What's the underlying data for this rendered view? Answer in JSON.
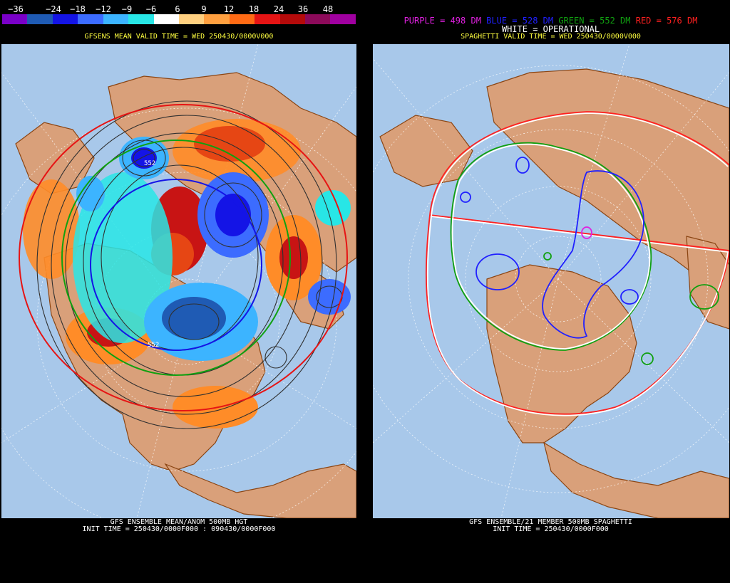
{
  "left_panel": {
    "colorbar": {
      "labels": [
        "−36",
        "−24",
        "−18",
        "−12",
        "−9",
        "−6",
        "6",
        "9",
        "12",
        "18",
        "24",
        "36",
        "48"
      ],
      "colors": [
        "#7a00c8",
        "#1f5bb4",
        "#1414e6",
        "#3c6cff",
        "#3cb4ff",
        "#28e6e6",
        "#ffffff",
        "#ffd080",
        "#ffa040",
        "#ff6a14",
        "#e61414",
        "#b40a0a",
        "#8c0a5a",
        "#a000a0"
      ]
    },
    "valid_time": "GFSENS MEAN VALID TIME = WED 250430/0000V000",
    "footer_line1": "GFS ENSEMBLE MEAN/ANOM 500MB HGT",
    "footer_line2": "INIT TIME = 250430/0000F000 : 090430/0000F000",
    "contour_label_1": "552",
    "contour_label_2": "552"
  },
  "right_panel": {
    "legend": {
      "purple": "PURPLE = 498 DM",
      "blue": "BLUE = 528 DM",
      "green": "GREEN = 552 DM",
      "red": "RED = 576 DM",
      "operational": "WHITE = OPERATIONAL"
    },
    "legend_colors": {
      "purple": "#e020e0",
      "blue": "#2020ff",
      "green": "#10a010",
      "red": "#ff2020"
    },
    "valid_time": "SPAGHETTI VALID TIME = WED 250430/0000V000",
    "footer_line1": "GFS ENSEMBLE/21 MEMBER 500MB SPAGHETTI",
    "footer_line2": "INIT TIME = 250430/0000F000"
  },
  "colors": {
    "ocean": "#a8c8ea",
    "land": "#d9a07a",
    "border": "#8b4513",
    "background": "#000000"
  }
}
